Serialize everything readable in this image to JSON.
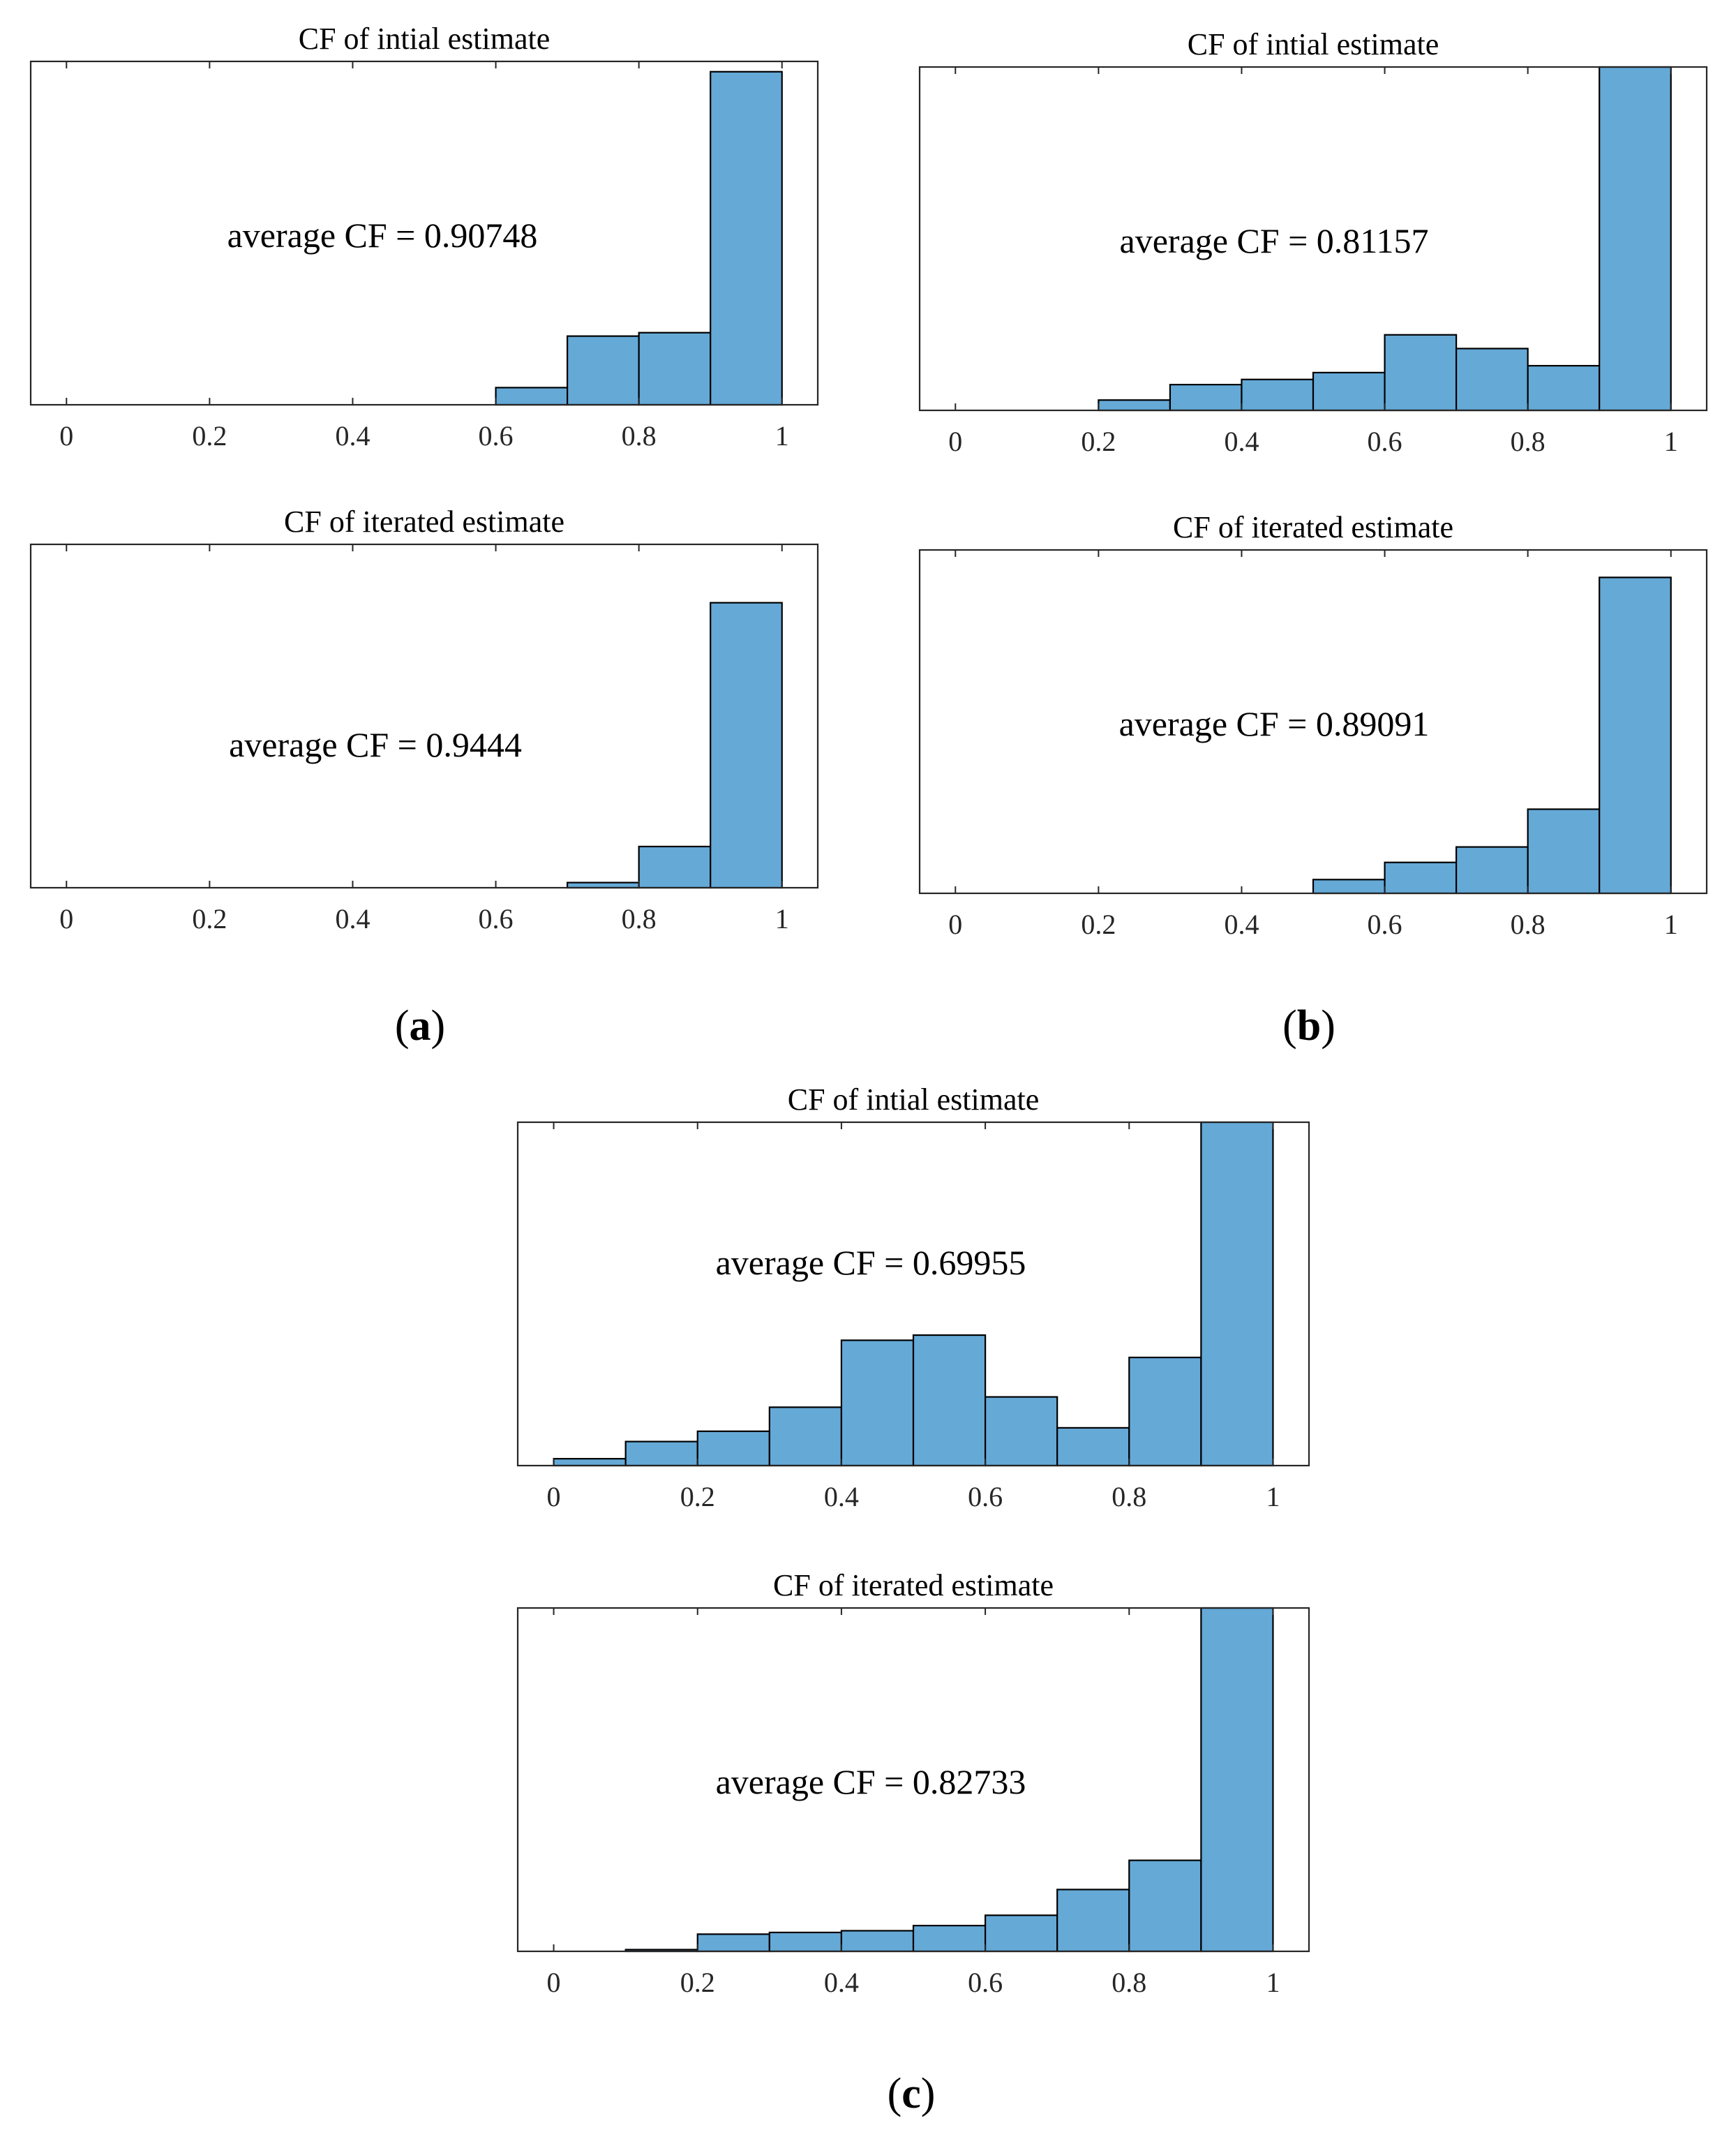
{
  "colors": {
    "bar_fill": "#65a9d7",
    "bar_edge": "#000000",
    "axis": "#262626"
  },
  "panel_labels": [
    {
      "open": "(",
      "letter": "a",
      "close": ")"
    },
    {
      "open": "(",
      "letter": "b",
      "close": ")"
    },
    {
      "open": "(",
      "letter": "c",
      "close": ")"
    }
  ],
  "chart_data": [
    {
      "type": "bar",
      "panel": "a",
      "title": "CF of intial estimate",
      "annotation": "average CF = 0.90748",
      "xlim": [
        -0.05,
        1.05
      ],
      "ylim": [
        0,
        1
      ],
      "xticks": [
        0,
        0.2,
        0.4,
        0.6,
        0.8,
        1
      ],
      "xtick_labels": [
        "0",
        "0.2",
        "0.4",
        "0.6",
        "0.8",
        "1"
      ],
      "bin_edges": [
        0,
        0.1,
        0.2,
        0.3,
        0.4,
        0.5,
        0.6,
        0.7,
        0.8,
        0.9,
        1.0
      ],
      "values": [
        0,
        0,
        0,
        0,
        0,
        0,
        0.05,
        0.2,
        0.21,
        0.97
      ]
    },
    {
      "type": "bar",
      "panel": "a",
      "title": "CF of iterated estimate",
      "annotation": "average CF = 0.9444",
      "xlim": [
        -0.05,
        1.05
      ],
      "ylim": [
        0,
        1
      ],
      "xticks": [
        0,
        0.2,
        0.4,
        0.6,
        0.8,
        1
      ],
      "xtick_labels": [
        "0",
        "0.2",
        "0.4",
        "0.6",
        "0.8",
        "1"
      ],
      "bin_edges": [
        0,
        0.1,
        0.2,
        0.3,
        0.4,
        0.5,
        0.6,
        0.7,
        0.8,
        0.9,
        1.0
      ],
      "values": [
        0,
        0,
        0,
        0,
        0,
        0,
        0,
        0.015,
        0.12,
        0.83
      ]
    },
    {
      "type": "bar",
      "panel": "b",
      "title": "CF of intial estimate",
      "annotation": "average CF = 0.81157",
      "xlim": [
        -0.05,
        1.05
      ],
      "ylim": [
        0,
        1
      ],
      "xticks": [
        0,
        0.2,
        0.4,
        0.6,
        0.8,
        1
      ],
      "xtick_labels": [
        "0",
        "0.2",
        "0.4",
        "0.6",
        "0.8",
        "1"
      ],
      "bin_edges": [
        0,
        0.1,
        0.2,
        0.3,
        0.4,
        0.5,
        0.6,
        0.7,
        0.8,
        0.9,
        1.0
      ],
      "values": [
        0,
        0,
        0.03,
        0.075,
        0.09,
        0.11,
        0.22,
        0.18,
        0.13,
        1.0
      ]
    },
    {
      "type": "bar",
      "panel": "b",
      "title": "CF of iterated estimate",
      "annotation": "average CF = 0.89091",
      "xlim": [
        -0.05,
        1.05
      ],
      "ylim": [
        0,
        1
      ],
      "xticks": [
        0,
        0.2,
        0.4,
        0.6,
        0.8,
        1
      ],
      "xtick_labels": [
        "0",
        "0.2",
        "0.4",
        "0.6",
        "0.8",
        "1"
      ],
      "bin_edges": [
        0,
        0.1,
        0.2,
        0.3,
        0.4,
        0.5,
        0.6,
        0.7,
        0.8,
        0.9,
        1.0
      ],
      "values": [
        0,
        0,
        0,
        0,
        0,
        0.04,
        0.09,
        0.135,
        0.245,
        0.92
      ]
    },
    {
      "type": "bar",
      "panel": "c",
      "title": "CF of intial estimate",
      "annotation": "average CF = 0.69955",
      "xlim": [
        -0.05,
        1.05
      ],
      "ylim": [
        0,
        1
      ],
      "xticks": [
        0,
        0.2,
        0.4,
        0.6,
        0.8,
        1
      ],
      "xtick_labels": [
        "0",
        "0.2",
        "0.4",
        "0.6",
        "0.8",
        "1"
      ],
      "bin_edges": [
        0,
        0.1,
        0.2,
        0.3,
        0.4,
        0.5,
        0.6,
        0.7,
        0.8,
        0.9,
        1.0
      ],
      "values": [
        0.02,
        0.07,
        0.1,
        0.17,
        0.365,
        0.38,
        0.2,
        0.11,
        0.315,
        1.0
      ]
    },
    {
      "type": "bar",
      "panel": "c",
      "title": "CF of iterated estimate",
      "annotation": "average CF = 0.82733",
      "xlim": [
        -0.05,
        1.05
      ],
      "ylim": [
        0,
        1
      ],
      "xticks": [
        0,
        0.2,
        0.4,
        0.6,
        0.8,
        1
      ],
      "xtick_labels": [
        "0",
        "0.2",
        "0.4",
        "0.6",
        "0.8",
        "1"
      ],
      "bin_edges": [
        0,
        0.1,
        0.2,
        0.3,
        0.4,
        0.5,
        0.6,
        0.7,
        0.8,
        0.9,
        1.0
      ],
      "values": [
        0,
        0.005,
        0.05,
        0.055,
        0.06,
        0.075,
        0.105,
        0.18,
        0.265,
        1.0
      ]
    }
  ]
}
